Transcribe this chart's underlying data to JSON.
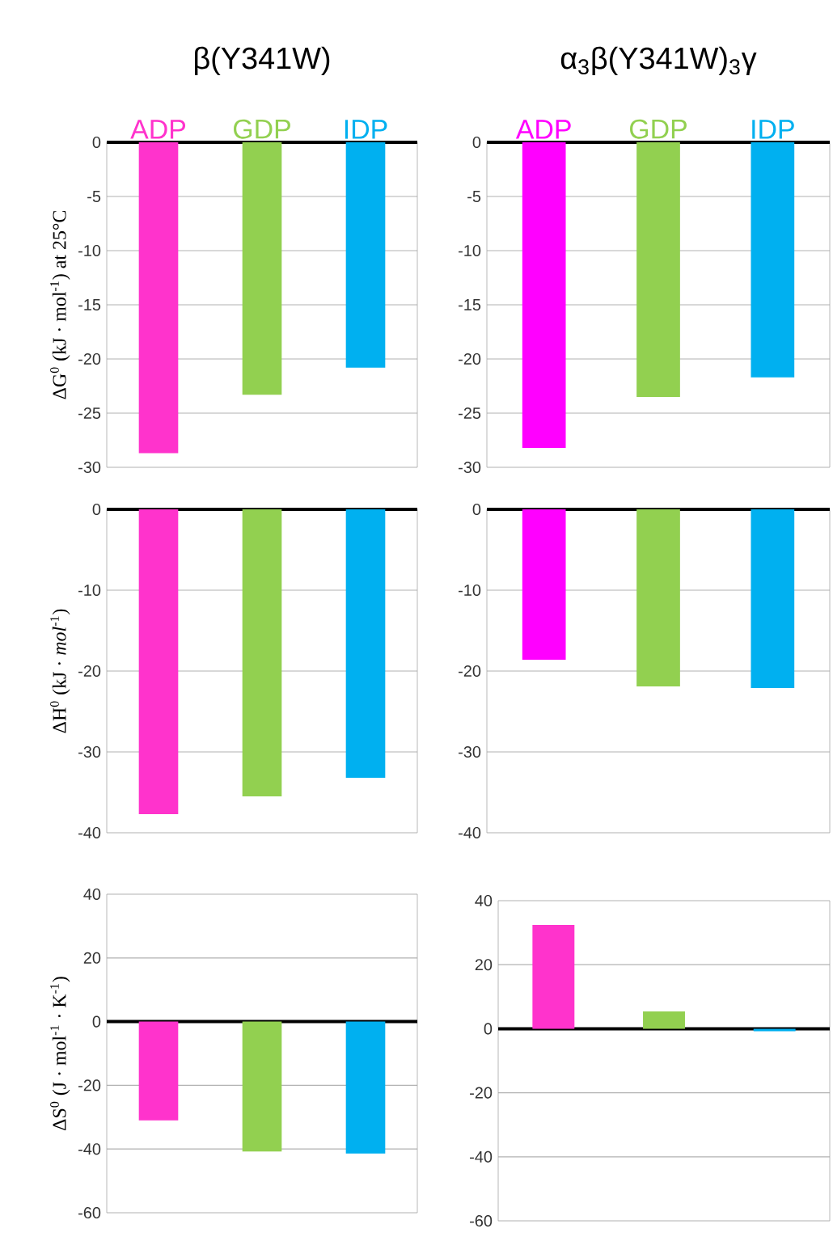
{
  "chart_data": [
    {
      "type": "bar",
      "title": "β(Y341W)",
      "ylabel": "ΔG$^{0}$ (kJ · mol$^{-1}$) at 25°C",
      "categories": [
        "ADP",
        "GDP",
        "IDP"
      ],
      "values": [
        -28.7,
        -23.3,
        -20.8
      ],
      "colors": [
        "#ff33cc",
        "#92d050",
        "#00b0f0"
      ],
      "ylim": [
        -30,
        0
      ],
      "yticks": [
        0,
        -5,
        -10,
        -15,
        -20,
        -25,
        -30
      ],
      "grid": "y"
    },
    {
      "type": "bar",
      "title": "α$_{3}$β(Y341W)$_{3}$γ",
      "categories": [
        "ADP",
        "GDP",
        "IDP"
      ],
      "values": [
        -28.2,
        -23.5,
        -21.7
      ],
      "colors": [
        "#ff00ff",
        "#92d050",
        "#00b0f0"
      ],
      "ylim": [
        -30,
        0
      ],
      "yticks": [
        0,
        -5,
        -10,
        -15,
        -20,
        -25,
        -30
      ],
      "grid": "y"
    },
    {
      "type": "bar",
      "ylabel": "ΔH$^{0}$ (kJ · *mol*$^{-1}$)",
      "categories": [
        null,
        null,
        null
      ],
      "values": [
        -37.7,
        -35.5,
        -33.2
      ],
      "colors": [
        "#ff33cc",
        "#92d050",
        "#00b0f0"
      ],
      "ylim": [
        -40,
        0
      ],
      "yticks": [
        0,
        -10,
        -20,
        -30,
        -40
      ],
      "grid": "y",
      "tick_labels": "y"
    },
    {
      "type": "bar",
      "categories": [
        null,
        null,
        null
      ],
      "values": [
        -18.6,
        -21.9,
        -22.1
      ],
      "colors": [
        "#ff00ff",
        "#92d050",
        "#00b0f0"
      ],
      "ylim": [
        -40,
        0
      ],
      "yticks": [
        0,
        -10,
        -20,
        -30,
        -40
      ],
      "grid": "y",
      "tick_labels": "y"
    },
    {
      "type": "bar",
      "ylabel": "ΔS$^{0}$ (J · mol$^{-1}$ · K$^{-1}$)",
      "categories": [
        null,
        null,
        null
      ],
      "values": [
        -31,
        -40.8,
        -41.4
      ],
      "colors": [
        "#ff33cc",
        "#92d050",
        "#00b0f0"
      ],
      "ylim": [
        -60,
        40
      ],
      "yticks": [
        40,
        20,
        0,
        -20,
        -40,
        -60
      ],
      "grid": "y",
      "tick_labels": "y"
    },
    {
      "type": "bar",
      "categories": [
        null,
        null,
        null
      ],
      "values": [
        32.4,
        5.4,
        -0.8
      ],
      "colors": [
        "#ff33cc",
        "#92d050",
        "#00b0f0"
      ],
      "ylim": [
        -60,
        40
      ],
      "yticks": [
        40,
        20,
        0,
        -20,
        -40,
        -60
      ],
      "grid": "y",
      "tick_labels": "y"
    }
  ]
}
